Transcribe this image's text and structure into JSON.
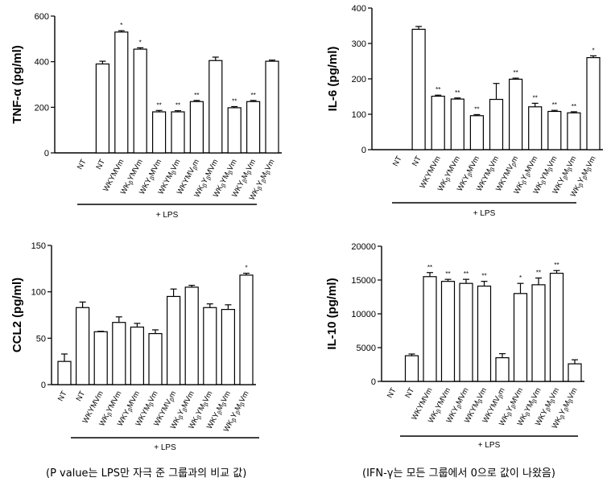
{
  "chart_data": [
    {
      "type": "bar",
      "ylabel": "TNF-α (pg/ml)",
      "ylim": [
        0,
        600
      ],
      "yticks": [
        0,
        200,
        400,
        600
      ],
      "categories": [
        "NT",
        "NT",
        "WKYMVm",
        "WK[β]YMVm",
        "WKY[β]MVm",
        "WKYM[β]Vm",
        "WKYMV[β]m",
        "WK[β]Y[β]MVm",
        "WK[β]YM[β]Vm",
        "WKY[β]M[β]Vm",
        "WK[β]Y[β]M[β]Vm"
      ],
      "values": [
        0,
        390,
        530,
        455,
        180,
        180,
        225,
        405,
        198,
        225,
        402
      ],
      "errors": [
        0,
        12,
        6,
        6,
        6,
        5,
        5,
        15,
        5,
        5,
        5
      ],
      "significance": [
        "",
        "",
        "*",
        "*",
        "**",
        "**",
        "**",
        "",
        "**",
        "**",
        ""
      ],
      "group_label": "+ LPS",
      "grid": false
    },
    {
      "type": "bar",
      "ylabel": "IL-6 (pg/ml)",
      "ylim": [
        0,
        400
      ],
      "yticks": [
        0,
        100,
        200,
        300,
        400
      ],
      "categories": [
        "NT",
        "NT",
        "WKYMVm",
        "WK[β]YMVm",
        "WKY[β]MVm",
        "WKYM[β]Vm",
        "WKYMV[β]m",
        "WK[β]Y[β]MVm",
        "WK[β]YM[β]Vm",
        "WKY[β]M[β]Vm",
        "WK[β]Y[β]M[β]Vm"
      ],
      "values": [
        0,
        340,
        151,
        143,
        96,
        142,
        199,
        121,
        108,
        104,
        260
      ],
      "errors": [
        0,
        8,
        3,
        3,
        3,
        45,
        3,
        10,
        3,
        3,
        5
      ],
      "significance": [
        "",
        "",
        "**",
        "**",
        "**",
        "",
        "**",
        "**",
        "**",
        "**",
        "*"
      ],
      "group_label": "+ LPS",
      "grid": false
    },
    {
      "type": "bar",
      "ylabel": "CCL2 (pg/ml)",
      "ylim": [
        0,
        150
      ],
      "yticks": [
        0,
        50,
        100,
        150
      ],
      "categories": [
        "NT",
        "NT",
        "WKYMVm",
        "WK[β]YMVm",
        "WKY[β]MVm",
        "WKYM[β]Vm",
        "WKYMV[β]m",
        "WK[β]Y[β]MVm",
        "WK[β]YM[β]Vm",
        "WKY[β]M[β]Vm",
        "WK[β]Y[β]M[β]Vm"
      ],
      "values": [
        25,
        83,
        57,
        67,
        62,
        55,
        95,
        105,
        83,
        81,
        118
      ],
      "errors": [
        8,
        6,
        0.5,
        6,
        4,
        4,
        8,
        2,
        4,
        5,
        2
      ],
      "significance": [
        "",
        "",
        "",
        "",
        "",
        "",
        "",
        "",
        "",
        "",
        "*"
      ],
      "group_label": "+ LPS",
      "grid": false
    },
    {
      "type": "bar",
      "ylabel": "IL-10 (pg/ml)",
      "ylim": [
        0,
        20000
      ],
      "yticks": [
        0,
        5000,
        10000,
        15000,
        20000
      ],
      "categories": [
        "NT",
        "NT",
        "WKYMVm",
        "WK[β]YMVm",
        "WKY[β]MVm",
        "WKYM[β]Vm",
        "WKYMV[β]m",
        "WK[β]Y[β]MVm",
        "WK[β]YM[β]Vm",
        "WKY[β]M[β]Vm",
        "WK[β]Y[β]M[β]Vm"
      ],
      "values": [
        0,
        3800,
        15500,
        14800,
        14500,
        14100,
        3500,
        13000,
        14300,
        16000,
        2600
      ],
      "errors": [
        0,
        250,
        600,
        300,
        600,
        700,
        600,
        1500,
        1000,
        400,
        600
      ],
      "significance": [
        "",
        "",
        "**",
        "**",
        "**",
        "**",
        "",
        "*",
        "**",
        "**",
        ""
      ],
      "group_label": "+ LPS",
      "grid": false
    }
  ],
  "captions": {
    "left": "(P value는 LPS만 자극 준 그룹과의 비교 값)",
    "right": "(IFN-γ는 모든 그룹에서 0으로 값이 나왔음)"
  }
}
